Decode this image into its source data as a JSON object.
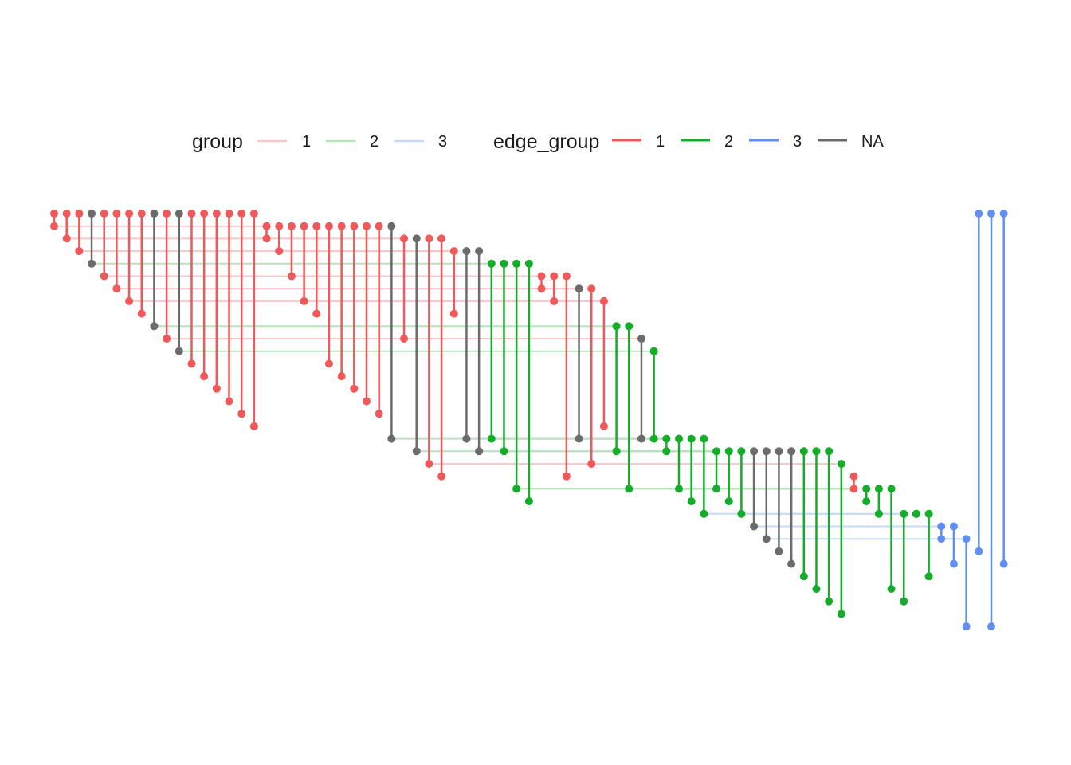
{
  "legend": {
    "group": {
      "title": "group",
      "items": [
        {
          "label": "1",
          "color": "#f8c9cc"
        },
        {
          "label": "2",
          "color": "#b9e2be"
        },
        {
          "label": "3",
          "color": "#c8d8f8"
        }
      ]
    },
    "edge_group": {
      "title": "edge_group",
      "items": [
        {
          "label": "1",
          "color": "#f0585a"
        },
        {
          "label": "2",
          "color": "#14ad2a"
        },
        {
          "label": "3",
          "color": "#5f8ef5"
        },
        {
          "label": "NA",
          "color": "#6b6b6b"
        }
      ]
    }
  },
  "diagram": {
    "type": "linear-dendrogram-arc",
    "columns": 78,
    "levels": 34,
    "runs": [
      {
        "col": 0,
        "level": 0,
        "group": "1",
        "len": 17
      },
      {
        "col": 17,
        "level": 1,
        "group": "1",
        "len": 11
      },
      {
        "col": 28,
        "level": 2,
        "group": "1",
        "len": 4
      },
      {
        "col": 32,
        "level": 3,
        "group": "1",
        "len": 3
      },
      {
        "col": 35,
        "level": 4,
        "group": "2",
        "len": 4
      },
      {
        "col": 39,
        "level": 5,
        "group": "1",
        "len": 3
      },
      {
        "col": 42,
        "level": 6,
        "group": "1",
        "len": 2
      },
      {
        "col": 44,
        "level": 7,
        "group": "1",
        "len": 1
      },
      {
        "col": 45,
        "level": 9,
        "group": "2",
        "len": 2
      },
      {
        "col": 47,
        "level": 10,
        "group": "1",
        "len": 1
      },
      {
        "col": 48,
        "level": 11,
        "group": "2",
        "len": 1
      },
      {
        "col": 49,
        "level": 18,
        "group": "2",
        "len": 4
      },
      {
        "col": 53,
        "level": 19,
        "group": "2",
        "len": 10
      },
      {
        "col": 63,
        "level": 20,
        "group": "1",
        "len": 1
      },
      {
        "col": 64,
        "level": 22,
        "group": "2",
        "len": 4
      },
      {
        "col": 68,
        "level": 24,
        "group": "3",
        "len": 3
      },
      {
        "col": 71,
        "level": 25,
        "group": "3",
        "len": 2
      },
      {
        "col": 73,
        "level": 26,
        "group": "3",
        "len": 1
      }
    ],
    "edges": [
      {
        "col": 0,
        "bottom": 1,
        "edge_group": "1"
      },
      {
        "col": 1,
        "bottom": 2,
        "edge_group": "1"
      },
      {
        "col": 2,
        "bottom": 3,
        "edge_group": "1"
      },
      {
        "col": 3,
        "bottom": 4,
        "edge_group": "NA"
      },
      {
        "col": 4,
        "bottom": 5,
        "edge_group": "1"
      },
      {
        "col": 5,
        "bottom": 6,
        "edge_group": "1"
      },
      {
        "col": 6,
        "bottom": 7,
        "edge_group": "1"
      },
      {
        "col": 7,
        "bottom": 8,
        "edge_group": "1"
      },
      {
        "col": 8,
        "bottom": 9,
        "edge_group": "NA"
      },
      {
        "col": 9,
        "bottom": 10,
        "edge_group": "1"
      },
      {
        "col": 10,
        "bottom": 11,
        "edge_group": "NA"
      },
      {
        "col": 11,
        "bottom": 12,
        "edge_group": "1"
      },
      {
        "col": 12,
        "bottom": 13,
        "edge_group": "1"
      },
      {
        "col": 13,
        "bottom": 14,
        "edge_group": "1"
      },
      {
        "col": 14,
        "bottom": 15,
        "edge_group": "1"
      },
      {
        "col": 15,
        "bottom": 16,
        "edge_group": "1"
      },
      {
        "col": 16,
        "bottom": 17,
        "edge_group": "1"
      },
      {
        "col": 17,
        "bottom": 2,
        "edge_group": "1"
      },
      {
        "col": 18,
        "bottom": 3,
        "edge_group": "1"
      },
      {
        "col": 19,
        "bottom": 5,
        "edge_group": "1"
      },
      {
        "col": 20,
        "bottom": 7,
        "edge_group": "1"
      },
      {
        "col": 21,
        "bottom": 8,
        "edge_group": "1"
      },
      {
        "col": 22,
        "bottom": 12,
        "edge_group": "1"
      },
      {
        "col": 23,
        "bottom": 13,
        "edge_group": "1"
      },
      {
        "col": 24,
        "bottom": 14,
        "edge_group": "1"
      },
      {
        "col": 25,
        "bottom": 15,
        "edge_group": "1"
      },
      {
        "col": 26,
        "bottom": 16,
        "edge_group": "1"
      },
      {
        "col": 27,
        "bottom": 18,
        "edge_group": "NA"
      },
      {
        "col": 28,
        "bottom": 10,
        "edge_group": "1"
      },
      {
        "col": 29,
        "bottom": 19,
        "edge_group": "NA"
      },
      {
        "col": 30,
        "bottom": 20,
        "edge_group": "1"
      },
      {
        "col": 31,
        "bottom": 21,
        "edge_group": "1"
      },
      {
        "col": 32,
        "bottom": 8,
        "edge_group": "1"
      },
      {
        "col": 33,
        "bottom": 18,
        "edge_group": "NA"
      },
      {
        "col": 34,
        "bottom": 19,
        "edge_group": "NA"
      },
      {
        "col": 35,
        "bottom": 18,
        "edge_group": "2"
      },
      {
        "col": 36,
        "bottom": 19,
        "edge_group": "2"
      },
      {
        "col": 37,
        "bottom": 22,
        "edge_group": "2"
      },
      {
        "col": 38,
        "bottom": 23,
        "edge_group": "2"
      },
      {
        "col": 39,
        "bottom": 6,
        "edge_group": "1"
      },
      {
        "col": 40,
        "bottom": 7,
        "edge_group": "1"
      },
      {
        "col": 41,
        "bottom": 21,
        "edge_group": "1"
      },
      {
        "col": 42,
        "bottom": 18,
        "edge_group": "NA"
      },
      {
        "col": 43,
        "bottom": 20,
        "edge_group": "1"
      },
      {
        "col": 44,
        "bottom": 17,
        "edge_group": "1"
      },
      {
        "col": 45,
        "bottom": 19,
        "edge_group": "2"
      },
      {
        "col": 46,
        "bottom": 22,
        "edge_group": "2"
      },
      {
        "col": 47,
        "bottom": 18,
        "edge_group": "NA"
      },
      {
        "col": 48,
        "bottom": 18,
        "edge_group": "2"
      },
      {
        "col": 49,
        "bottom": 19,
        "edge_group": "2"
      },
      {
        "col": 50,
        "bottom": 22,
        "edge_group": "2"
      },
      {
        "col": 51,
        "bottom": 23,
        "edge_group": "2"
      },
      {
        "col": 52,
        "bottom": 24,
        "edge_group": "2"
      },
      {
        "col": 53,
        "bottom": 22,
        "edge_group": "2"
      },
      {
        "col": 54,
        "bottom": 23,
        "edge_group": "2"
      },
      {
        "col": 55,
        "bottom": 24,
        "edge_group": "2"
      },
      {
        "col": 56,
        "bottom": 25,
        "edge_group": "NA"
      },
      {
        "col": 57,
        "bottom": 26,
        "edge_group": "NA"
      },
      {
        "col": 58,
        "bottom": 27,
        "edge_group": "NA"
      },
      {
        "col": 59,
        "bottom": 28,
        "edge_group": "NA"
      },
      {
        "col": 60,
        "bottom": 29,
        "edge_group": "2"
      },
      {
        "col": 61,
        "bottom": 30,
        "edge_group": "2"
      },
      {
        "col": 62,
        "bottom": 31,
        "edge_group": "2"
      },
      {
        "col": 63,
        "bottom": 32,
        "edge_group": "2"
      },
      {
        "col": 64,
        "bottom": 21,
        "edge_group": "1"
      },
      {
        "col": 65,
        "bottom": 23,
        "edge_group": "2"
      },
      {
        "col": 66,
        "bottom": 24,
        "edge_group": "2"
      },
      {
        "col": 67,
        "bottom": 30,
        "edge_group": "2"
      },
      {
        "col": 68,
        "bottom": 31,
        "edge_group": "2"
      },
      {
        "col": 69,
        "bottom": 24,
        "edge_group": "2"
      },
      {
        "col": 70,
        "bottom": 29,
        "edge_group": "2"
      },
      {
        "col": 71,
        "bottom": 26,
        "edge_group": "3"
      },
      {
        "col": 72,
        "bottom": 28,
        "edge_group": "3"
      },
      {
        "col": 73,
        "bottom": 33,
        "edge_group": "3"
      },
      {
        "col": 74,
        "bottom": 27,
        "edge_group": "3"
      },
      {
        "col": 75,
        "bottom": 33,
        "edge_group": "3"
      },
      {
        "col": 76,
        "bottom": 28,
        "edge_group": "3"
      }
    ]
  }
}
